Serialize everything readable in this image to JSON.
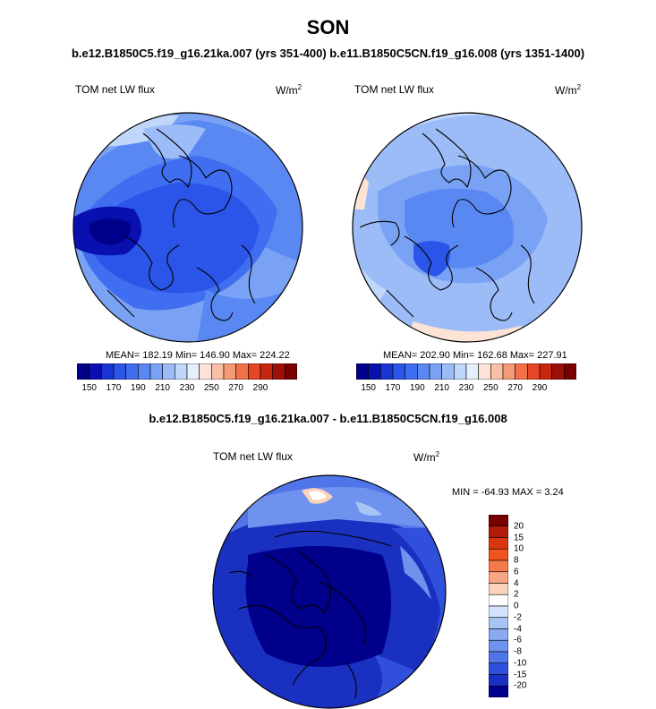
{
  "title": "SON",
  "runs_line": "b.e12.B1850C5.f19_g16.21ka.007 (yrs 351-400) b.e11.B1850C5CN.f19_g16.008 (yrs 1351-1400)",
  "diff_title": "b.e12.B1850C5.f19_g16.21ka.007 - b.e11.B1850C5CN.f19_g16.008",
  "panels": {
    "left": {
      "variable": "TOM net LW flux",
      "units": "W/m",
      "units_exp": "2",
      "stats": "MEAN= 182.19  Min= 146.90  Max= 224.22"
    },
    "right": {
      "variable": "TOM net LW flux",
      "units": "W/m",
      "units_exp": "2",
      "stats": "MEAN= 202.90  Min= 162.68  Max= 227.91"
    },
    "diff": {
      "variable": "TOM net LW flux",
      "units": "W/m",
      "units_exp": "2",
      "stats": "MIN = -64.93 MAX =   3.24"
    }
  },
  "colorbar_abs": {
    "colors": [
      "#00008b",
      "#0a10b0",
      "#1a35d4",
      "#2a55e8",
      "#3f6ef0",
      "#5a88f2",
      "#7aa2f4",
      "#9cbcf7",
      "#c0d6fa",
      "#e6f0fd",
      "#fde3d6",
      "#f9c0a5",
      "#f59a76",
      "#f0704a",
      "#e64526",
      "#c92612",
      "#9e1006",
      "#7a0000"
    ],
    "tick_labels": [
      "150",
      "170",
      "190",
      "210",
      "230",
      "250",
      "270",
      "290"
    ]
  },
  "colorbar_diff": {
    "colors": [
      "#7a0000",
      "#b01c0c",
      "#d9360f",
      "#f0541f",
      "#f47a4a",
      "#f8a582",
      "#fbd2bc",
      "#ffffff",
      "#d4e3fb",
      "#a8c4f5",
      "#8aabf2",
      "#6f92ee",
      "#4f75e8",
      "#3050dc",
      "#1a30c0",
      "#00008b"
    ],
    "tick_labels": [
      "20",
      "15",
      "10",
      "8",
      "6",
      "4",
      "2",
      "0",
      "-2",
      "-4",
      "-6",
      "-8",
      "-10",
      "-15",
      "-20"
    ]
  }
}
